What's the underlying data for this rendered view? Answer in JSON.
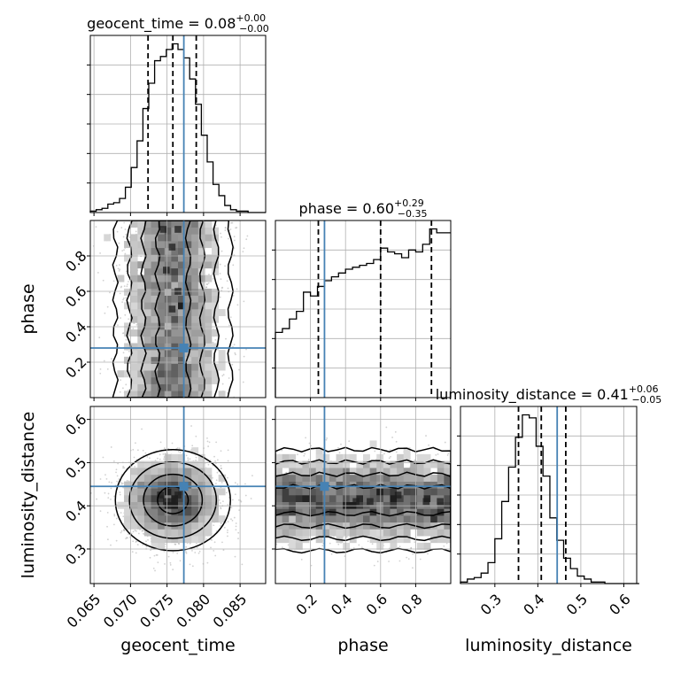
{
  "chart_data": {
    "type": "corner",
    "parameters": [
      "geocent_time",
      "phase",
      "luminosity_distance"
    ],
    "truths": {
      "geocent_time": 0.0773,
      "phase": 0.28,
      "luminosity_distance": 0.445
    },
    "colors": {
      "truth": "#4682b4",
      "hist": "#000000",
      "grid": "#b0b0b0",
      "scatter": "#9a9a9a"
    },
    "diagonal": [
      {
        "param": "geocent_time",
        "title": {
          "main": "geocent_time = 0.08",
          "sup": "+0.00",
          "sub": "−0.00"
        },
        "xlim": [
          0.0645,
          0.0885
        ],
        "quantiles": [
          0.0724,
          0.0758,
          0.079
        ],
        "bins": {
          "start": 0.0645,
          "width": 0.0008,
          "counts": [
            1,
            2,
            3,
            6,
            7,
            10,
            18,
            32,
            51,
            74,
            92,
            108,
            111,
            116,
            120,
            116,
            110,
            95,
            77,
            55,
            36,
            20,
            12,
            5,
            2,
            1,
            1,
            0,
            0,
            0
          ]
        }
      },
      {
        "param": "phase",
        "title": {
          "main": "phase = 0.60",
          "sup": "+0.29",
          "sub": "−0.35"
        },
        "xlim": [
          0.0,
          1.0
        ],
        "quantiles": [
          0.245,
          0.6,
          0.89
        ],
        "bins": {
          "start": 0.0,
          "width": 0.04,
          "counts": [
            34,
            36,
            41,
            45,
            55,
            53,
            58,
            61,
            63,
            65,
            67,
            68,
            69,
            70,
            72,
            78,
            76,
            75,
            73,
            77,
            76,
            80,
            88,
            86,
            86
          ]
        }
      },
      {
        "param": "luminosity_distance",
        "title": {
          "main": "luminosity_distance = 0.41",
          "sup": "+0.06",
          "sub": "−0.05"
        },
        "xlim": [
          0.22,
          0.63
        ],
        "quantiles": [
          0.355,
          0.408,
          0.465
        ],
        "bins": {
          "start": 0.22,
          "width": 0.016,
          "counts": [
            1,
            3,
            4,
            7,
            14,
            30,
            55,
            78,
            98,
            113,
            111,
            92,
            72,
            44,
            29,
            17,
            10,
            5,
            3,
            1,
            1,
            0,
            0,
            0,
            0,
            0
          ]
        }
      }
    ],
    "scatter_panels": [
      {
        "x": "geocent_time",
        "y": "phase",
        "xlim": [
          0.0645,
          0.0885
        ],
        "ylim": [
          0.0,
          1.0
        ],
        "yticks": [
          0.2,
          0.4,
          0.6,
          0.8
        ],
        "distribution": {
          "x_center": 0.0758,
          "x_sd": 0.0035,
          "y_uniform": [
            0.0,
            1.0
          ]
        },
        "dense_cells": [
          [
            0.0745,
            0.95
          ],
          [
            0.0765,
            0.95
          ],
          [
            0.0757,
            0.85
          ],
          [
            0.0749,
            0.72
          ],
          [
            0.0765,
            0.6
          ],
          [
            0.0757,
            0.5
          ]
        ]
      },
      {
        "x": "geocent_time",
        "y": "luminosity_distance",
        "xlim": [
          0.0645,
          0.0885
        ],
        "ylim": [
          0.22,
          0.63
        ],
        "yticks": [
          0.3,
          0.4,
          0.5,
          0.6
        ],
        "distribution": {
          "x_center": 0.0758,
          "x_sd": 0.0035,
          "y_center": 0.413,
          "y_sd": 0.052
        },
        "dense_cells": [
          [
            0.0749,
            0.41
          ],
          [
            0.0757,
            0.41
          ],
          [
            0.0741,
            0.425
          ],
          [
            0.0765,
            0.425
          ]
        ]
      },
      {
        "x": "phase",
        "y": "luminosity_distance",
        "xlim": [
          0.0,
          1.0
        ],
        "ylim": [
          0.22,
          0.63
        ],
        "yticks": [
          0.3,
          0.4,
          0.5,
          0.6
        ],
        "distribution": {
          "x_uniform": [
            0.0,
            1.0
          ],
          "y_center": 0.413,
          "y_sd": 0.052
        },
        "dense_cells": [
          [
            0.46,
            0.41
          ],
          [
            0.54,
            0.41
          ],
          [
            0.86,
            0.41
          ],
          [
            0.94,
            0.41
          ],
          [
            0.7,
            0.425
          ]
        ]
      }
    ],
    "ticks": {
      "geocent_time": {
        "values": [
          0.065,
          0.07,
          0.075,
          0.08,
          0.085
        ],
        "labels": [
          "0.065",
          "0.070",
          "0.075",
          "0.080",
          "0.085"
        ]
      },
      "phase": {
        "values": [
          0.2,
          0.4,
          0.6,
          0.8
        ],
        "labels": [
          "0.2",
          "0.4",
          "0.6",
          "0.8"
        ]
      },
      "luminosity_distance": {
        "values": [
          0.3,
          0.4,
          0.5,
          0.6
        ],
        "labels": [
          "0.3",
          "0.4",
          "0.5",
          "0.6"
        ]
      }
    },
    "axis_labels": {
      "geocent_time": "geocent_time",
      "phase": "phase",
      "luminosity_distance": "luminosity_distance"
    },
    "grid": true
  }
}
